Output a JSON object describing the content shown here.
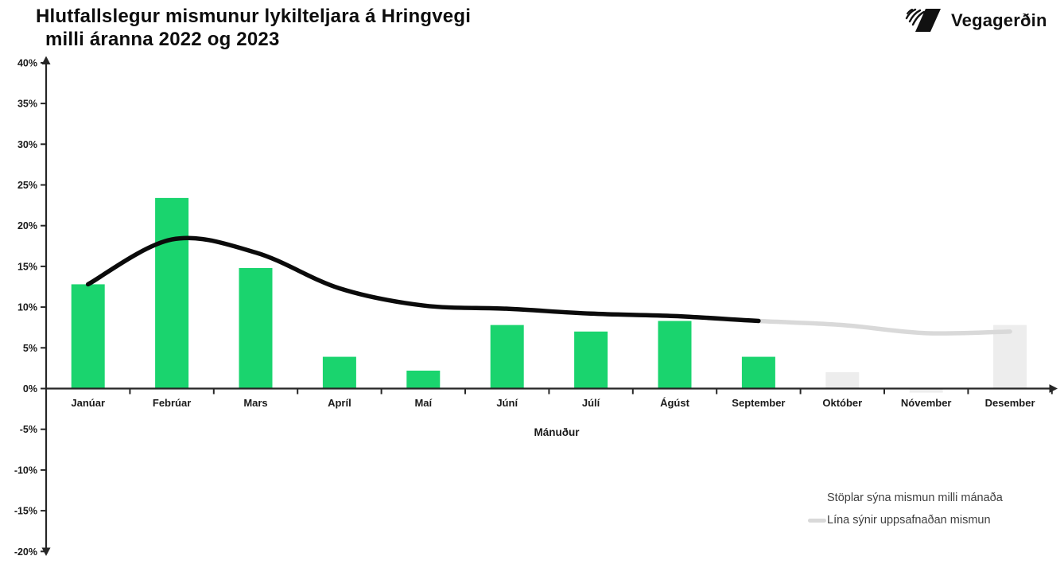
{
  "header": {
    "title_line1": "Hlutfallslegur mismunur lykilteljara á Hringvegi",
    "title_line2": "milli áranna 2022 og 2023",
    "logo_text": "Vegagerðin"
  },
  "legend": {
    "bars_label": "Stöplar sýna mismun milli mánaða",
    "line_label": "Lína sýnir uppsafnaðan mismun"
  },
  "chart_data": {
    "type": "bar",
    "title": "Hlutfallslegur mismunur lykilteljara á Hringvegi milli áranna 2022 og 2023",
    "xlabel": "Mánuður",
    "ylabel": "",
    "ylim": [
      -20,
      40
    ],
    "ytick_step": 5,
    "ytick_suffix": "%",
    "grid": false,
    "legend_position": "bottom-right",
    "categories": [
      "Janúar",
      "Febrúar",
      "Mars",
      "Apríl",
      "Maí",
      "Júní",
      "Júlí",
      "Ágúst",
      "September",
      "Október",
      "Nóvember",
      "Desember"
    ],
    "series": [
      {
        "name": "Stöplar sýna mismun milli mánaða",
        "type": "bar",
        "values": [
          12.8,
          23.4,
          14.8,
          3.9,
          2.2,
          7.8,
          7.0,
          8.3,
          3.9,
          2.0,
          -0.5,
          7.8
        ]
      },
      {
        "name": "Lína sýnir uppsafnaðan mismun",
        "type": "line",
        "values": [
          12.8,
          18.3,
          16.7,
          12.3,
          10.2,
          9.8,
          9.2,
          8.9,
          8.3,
          7.8,
          6.8,
          7.0
        ]
      }
    ],
    "projected_from_index": 9,
    "line_gray_from_index": 8,
    "colors": {
      "bar_actual": "#1AD46E",
      "bar_projected": "#EDEDED",
      "line_actual": "#0B0B0B",
      "line_projected": "#D9D9D9",
      "axis": "#262626",
      "text": "#1A1A1A",
      "legend_text": "#3F3F3F"
    }
  }
}
